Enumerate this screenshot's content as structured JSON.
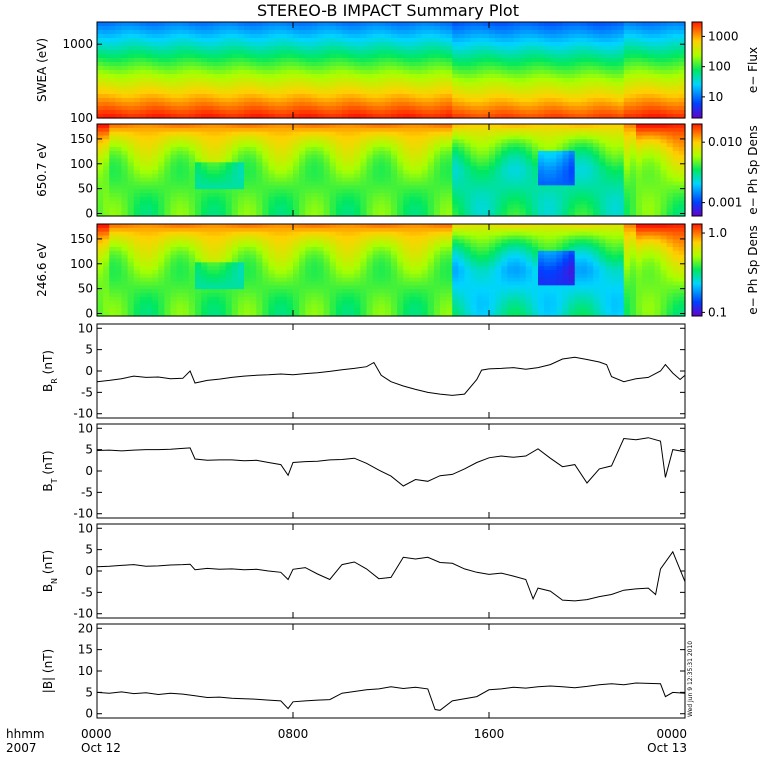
{
  "chart_data": {
    "title": "STEREO-B IMPACT Summary Plot",
    "corner_label_hhmm": "hhmm",
    "corner_label_year": "2007",
    "x_ticks": [
      {
        "hours": 0,
        "time": "0000",
        "date": "Oct 12"
      },
      {
        "hours": 8,
        "time": "0800",
        "date": ""
      },
      {
        "hours": 16,
        "time": "1600",
        "date": ""
      },
      {
        "hours": 24,
        "time": "0000",
        "date": "Oct 13"
      }
    ],
    "x_range_hours": [
      0,
      24
    ],
    "timestamp": "Wed Jun  9 12:35:31 2010",
    "spectrograms": [
      {
        "name": "SWEA",
        "type": "heatmap",
        "ylabel": "SWEA (eV)",
        "ylog": true,
        "yrange": [
          100,
          2000
        ],
        "yticks": [
          "100",
          "1000"
        ],
        "yticks_values": [
          100,
          1000
        ],
        "colorbar_label": "e− Flux",
        "colorbar_ticks": [
          "10",
          "100",
          "1000"
        ],
        "colorbar_ticks_values": [
          10,
          100,
          1000
        ],
        "colorbar_range": [
          2,
          3000
        ]
      },
      {
        "name": "PAD650",
        "type": "heatmap",
        "ylabel": "650.7 eV",
        "ylog": false,
        "yrange": [
          -5,
          180
        ],
        "yticks": [
          "0",
          "50",
          "100",
          "150"
        ],
        "yticks_values": [
          0,
          50,
          100,
          150
        ],
        "colorbar_label": "e− Ph Sp Dens",
        "colorbar_ticks": [
          "0.001",
          "0.010"
        ],
        "colorbar_ticks_values": [
          0.001,
          0.01
        ],
        "colorbar_range": [
          0.0006,
          0.02
        ]
      },
      {
        "name": "PAD246",
        "type": "heatmap",
        "ylabel": "246.6 eV",
        "ylog": false,
        "yrange": [
          -5,
          180
        ],
        "yticks": [
          "0",
          "50",
          "100",
          "150"
        ],
        "yticks_values": [
          0,
          50,
          100,
          150
        ],
        "colorbar_label": "e− Ph Sp Dens",
        "colorbar_ticks": [
          "0.1",
          "1.0"
        ],
        "colorbar_ticks_values": [
          0.1,
          1.0
        ],
        "colorbar_range": [
          0.09,
          1.3
        ]
      }
    ],
    "line_panels": [
      {
        "name": "BR",
        "type": "line",
        "ylabel_main": "B",
        "ylabel_sub": "R",
        "ylabel_unit": " (nT)",
        "ylim": [
          -11,
          11
        ],
        "yticks": [
          "-10",
          "-5",
          "0",
          "5",
          "10"
        ],
        "yticks_values": [
          -10,
          -5,
          0,
          5,
          10
        ],
        "x": [
          0,
          0.5,
          1,
          1.5,
          2,
          2.5,
          3,
          3.5,
          3.8,
          4,
          4.5,
          5,
          5.5,
          6,
          6.5,
          7,
          7.5,
          8,
          8.5,
          9,
          9.5,
          10,
          10.5,
          11,
          11.3,
          11.6,
          12,
          12.5,
          13,
          13.5,
          14,
          14.5,
          15,
          15.5,
          15.7,
          16,
          16.5,
          17,
          17.5,
          18,
          18.5,
          19,
          19.5,
          20,
          20.5,
          20.8,
          21,
          21.5,
          22,
          22.5,
          23,
          23.2,
          23.5,
          23.8,
          24
        ],
        "y": [
          -2.5,
          -2.2,
          -1.8,
          -1.2,
          -1.5,
          -1.4,
          -1.8,
          -1.7,
          0,
          -2.8,
          -2.2,
          -1.9,
          -1.5,
          -1.2,
          -1.0,
          -0.9,
          -0.7,
          -0.9,
          -0.6,
          -0.4,
          -0.1,
          0.3,
          0.6,
          1.0,
          2.0,
          -1.0,
          -2.5,
          -3.5,
          -4.3,
          -5.0,
          -5.4,
          -5.7,
          -5.4,
          -2.0,
          0.2,
          0.5,
          0.6,
          0.8,
          0.4,
          0.8,
          1.5,
          2.8,
          3.2,
          2.7,
          2.1,
          1.5,
          -1.3,
          -2.5,
          -1.8,
          -1.5,
          0.0,
          1.5,
          -0.5,
          -2.0,
          -1.0
        ]
      },
      {
        "name": "BT",
        "type": "line",
        "ylabel_main": "B",
        "ylabel_sub": "T",
        "ylabel_unit": " (nT)",
        "ylim": [
          -11,
          11
        ],
        "yticks": [
          "-10",
          "-5",
          "0",
          "5",
          "10"
        ],
        "yticks_values": [
          -10,
          -5,
          0,
          5,
          10
        ],
        "x": [
          0,
          0.5,
          1,
          1.5,
          2,
          2.5,
          3,
          3.5,
          3.8,
          4,
          4.5,
          5,
          5.5,
          6,
          6.5,
          7,
          7.5,
          7.8,
          8,
          8.5,
          9,
          9.5,
          10,
          10.5,
          11,
          11.5,
          12,
          12.5,
          13,
          13.5,
          14,
          14.5,
          15,
          15.5,
          16,
          16.5,
          17,
          17.5,
          18,
          18.5,
          19,
          19.5,
          20,
          20.5,
          21,
          21.5,
          22,
          22.5,
          23,
          23.2,
          23.5,
          24
        ],
        "y": [
          4.8,
          4.9,
          4.7,
          4.9,
          5.0,
          5.0,
          5.1,
          5.3,
          5.4,
          2.8,
          2.5,
          2.6,
          2.6,
          2.4,
          2.5,
          2.0,
          1.5,
          -1.0,
          2.0,
          2.2,
          2.3,
          2.6,
          2.7,
          3.0,
          1.8,
          0.2,
          -1.2,
          -3.5,
          -2.0,
          -2.4,
          -1.1,
          -0.8,
          0.5,
          2.0,
          3.1,
          3.5,
          3.2,
          3.5,
          5.2,
          3.0,
          1.0,
          1.5,
          -2.8,
          0.5,
          1.2,
          7.6,
          7.3,
          7.8,
          7.0,
          -1.5,
          5.0,
          4.5
        ]
      },
      {
        "name": "BN",
        "type": "line",
        "ylabel_main": "B",
        "ylabel_sub": "N",
        "ylabel_unit": " (nT)",
        "ylim": [
          -11,
          11
        ],
        "yticks": [
          "-10",
          "-5",
          "0",
          "5",
          "10"
        ],
        "yticks_values": [
          -10,
          -5,
          0,
          5,
          10
        ],
        "x": [
          0,
          0.5,
          1,
          1.5,
          2,
          2.5,
          3,
          3.5,
          3.8,
          4,
          4.5,
          5,
          5.5,
          6,
          6.5,
          7,
          7.5,
          7.8,
          8,
          8.5,
          9,
          9.5,
          10,
          10.5,
          11,
          11.5,
          12,
          12.5,
          13,
          13.5,
          14,
          14.5,
          15,
          15.5,
          16,
          16.5,
          17,
          17.5,
          17.8,
          18,
          18.5,
          19,
          19.5,
          20,
          20.5,
          21,
          21.5,
          22,
          22.5,
          22.8,
          23,
          23.5,
          24
        ],
        "y": [
          1.0,
          1.1,
          1.3,
          1.5,
          1.1,
          1.2,
          1.4,
          1.5,
          1.6,
          0.3,
          0.6,
          0.4,
          0.5,
          0.3,
          0.4,
          0.0,
          -0.3,
          -2.0,
          0.4,
          0.8,
          -0.7,
          -2.0,
          1.5,
          2.1,
          0.5,
          -1.8,
          -1.5,
          3.2,
          2.8,
          3.2,
          2.0,
          1.8,
          0.5,
          -0.3,
          -0.8,
          -0.5,
          -1.2,
          -2.0,
          -6.5,
          -4.0,
          -4.7,
          -6.8,
          -7.0,
          -6.7,
          -6.0,
          -5.5,
          -4.5,
          -4.2,
          -4.0,
          -5.5,
          0.5,
          4.5,
          -2.5
        ]
      },
      {
        "name": "Bmag",
        "type": "line",
        "ylabel_main": "|B|",
        "ylabel_sub": "",
        "ylabel_unit": " (nT)",
        "ylim": [
          -1,
          21
        ],
        "yticks": [
          "0",
          "5",
          "10",
          "15",
          "20"
        ],
        "yticks_values": [
          0,
          5,
          10,
          15,
          20
        ],
        "x": [
          0,
          0.5,
          1,
          1.5,
          2,
          2.5,
          3,
          3.5,
          4,
          4.5,
          5,
          5.5,
          6,
          6.5,
          7,
          7.5,
          7.8,
          8,
          8.5,
          9,
          9.5,
          10,
          10.5,
          11,
          11.5,
          12,
          12.5,
          13,
          13.5,
          13.8,
          14,
          14.5,
          15,
          15.5,
          16,
          16.5,
          17,
          17.5,
          18,
          18.5,
          19,
          19.5,
          20,
          20.5,
          21,
          21.5,
          22,
          22.5,
          23,
          23.2,
          23.5,
          24
        ],
        "y": [
          5.0,
          4.8,
          5.1,
          4.7,
          4.9,
          4.5,
          4.8,
          4.6,
          4.2,
          3.8,
          3.9,
          3.6,
          3.5,
          3.4,
          3.2,
          3.0,
          1.2,
          2.8,
          3.0,
          3.2,
          3.3,
          4.8,
          5.2,
          5.6,
          5.8,
          6.3,
          5.9,
          6.2,
          5.8,
          1.0,
          0.8,
          3.0,
          3.5,
          4.0,
          5.6,
          5.8,
          6.2,
          6.0,
          6.3,
          6.5,
          6.3,
          6.1,
          6.4,
          6.8,
          7.0,
          6.8,
          7.2,
          7.1,
          7.0,
          4.0,
          5.0,
          4.8
        ]
      }
    ]
  }
}
